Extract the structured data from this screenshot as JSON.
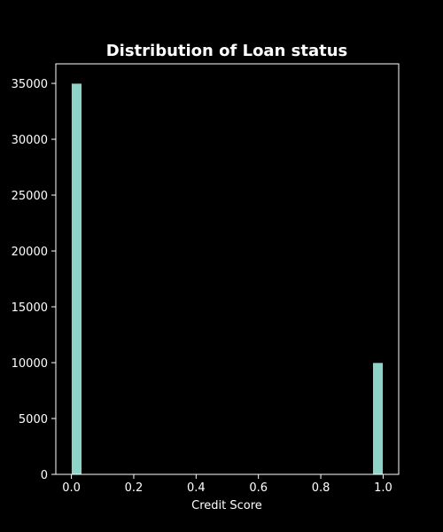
{
  "chart_data": {
    "type": "bar",
    "title": "Distribution of Loan status",
    "xlabel": "Credit Score",
    "ylabel": "",
    "xlim": [
      -0.05,
      1.05
    ],
    "ylim": [
      0,
      36750
    ],
    "x_ticks": [
      "0.0",
      "0.2",
      "0.4",
      "0.6",
      "0.8",
      "1.0"
    ],
    "y_ticks": [
      "0",
      "5000",
      "10000",
      "15000",
      "20000",
      "25000",
      "30000",
      "35000"
    ],
    "bin_width": 0.0333,
    "bins": [
      {
        "x": 0.0,
        "value": 35000
      },
      {
        "x": 0.9667,
        "value": 10000
      }
    ],
    "grid": false,
    "colors": {
      "background": "#000000",
      "bar_fill": "#8dd3c7",
      "axes": "#ffffff",
      "text": "#ffffff"
    }
  }
}
